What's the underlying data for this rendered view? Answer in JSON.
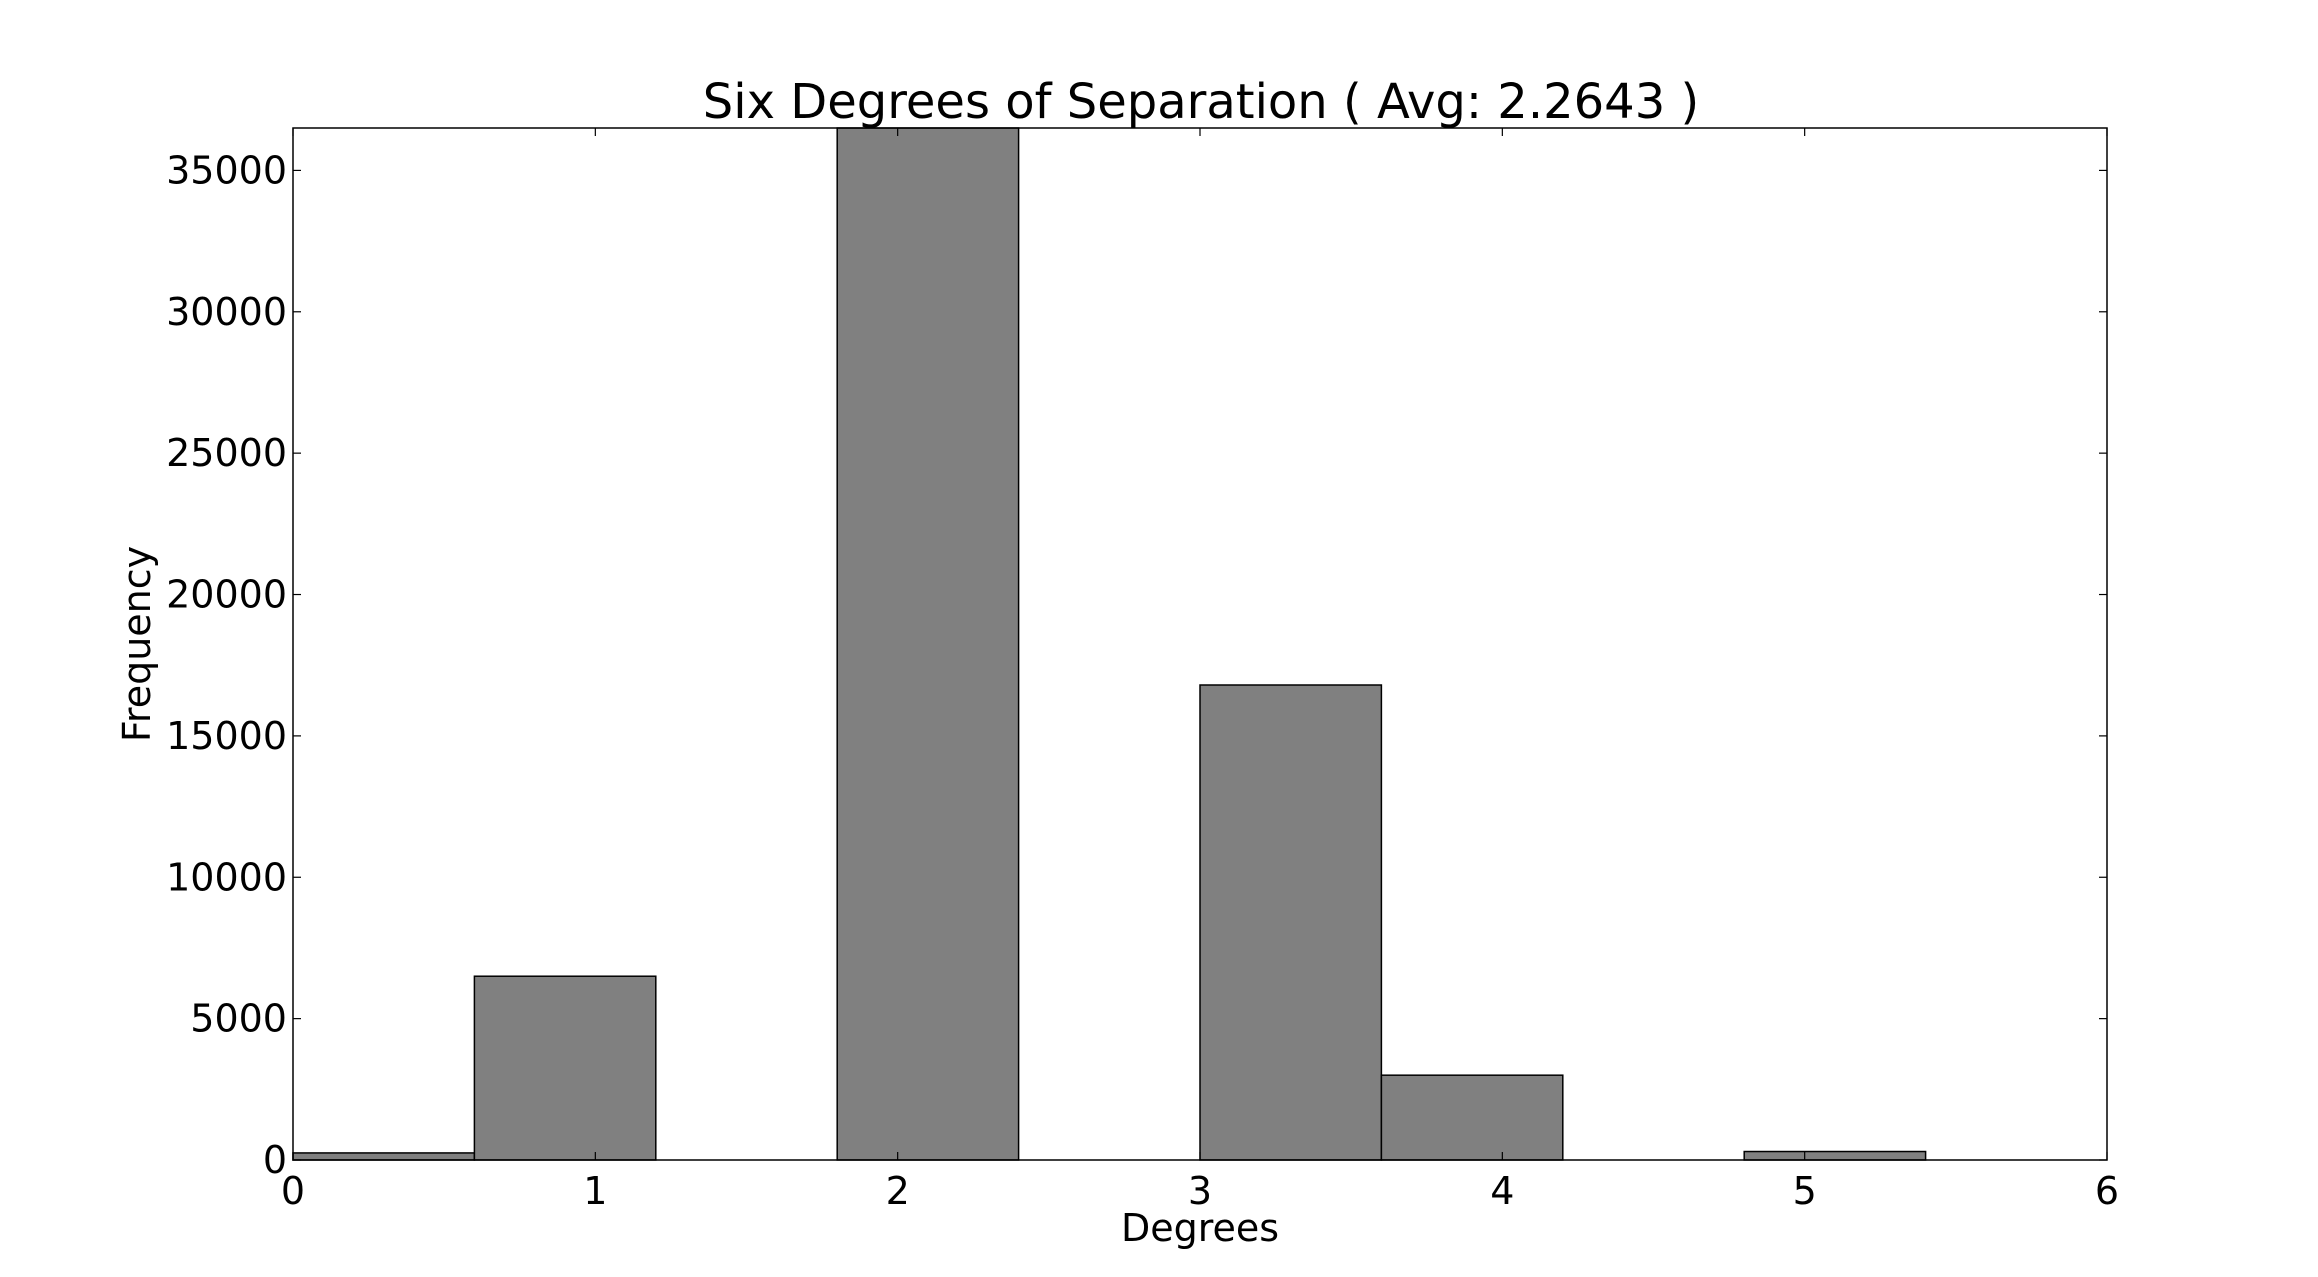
{
  "chart_data": {
    "type": "bar",
    "title": "Six Degrees of Separation ( Avg: 2.2643 )",
    "xlabel": "Degrees",
    "ylabel": "Frequency",
    "xlim": [
      0,
      6
    ],
    "ylim": [
      0,
      36500
    ],
    "xticks": [
      0,
      1,
      2,
      3,
      4,
      5,
      6
    ],
    "yticks": [
      0,
      5000,
      10000,
      15000,
      20000,
      25000,
      30000,
      35000
    ],
    "grid": false,
    "bar_color": "#808080",
    "edge_color": "#000000",
    "bins": [
      {
        "x0": 0.0,
        "x1": 0.6,
        "value": 250
      },
      {
        "x0": 0.6,
        "x1": 1.2,
        "value": 6500
      },
      {
        "x0": 1.2,
        "x1": 1.8,
        "value": 0
      },
      {
        "x0": 1.8,
        "x1": 2.4,
        "value": 36500
      },
      {
        "x0": 2.4,
        "x1": 3.0,
        "value": 0
      },
      {
        "x0": 3.0,
        "x1": 3.6,
        "value": 16800
      },
      {
        "x0": 3.6,
        "x1": 4.2,
        "value": 3000
      },
      {
        "x0": 4.2,
        "x1": 4.8,
        "value": 0
      },
      {
        "x0": 4.8,
        "x1": 5.4,
        "value": 300
      },
      {
        "x0": 5.4,
        "x1": 6.0,
        "value": 0
      }
    ]
  }
}
